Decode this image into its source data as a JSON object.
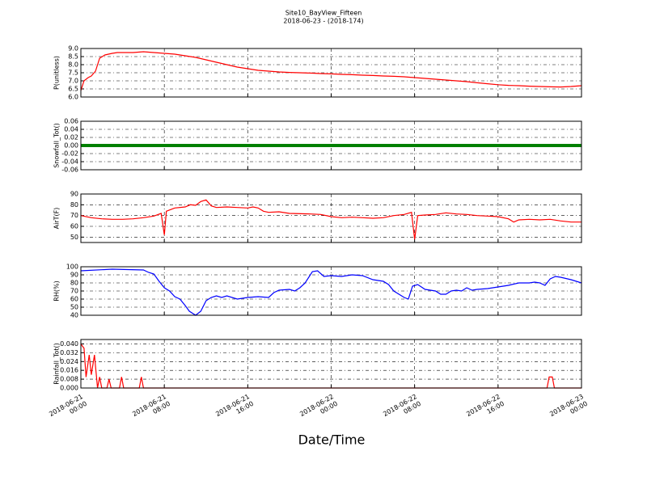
{
  "chart_data": [
    {
      "type": "line",
      "title": "Site10_BayView_Fifteen",
      "subtitle": "2018-06-23 - (2018-174)",
      "y_label": "P(unitless)",
      "color": "#ff0000",
      "x": [
        0,
        0.3,
        0.7,
        1,
        1.4,
        1.8,
        2.3,
        3,
        3.5,
        4,
        5,
        6,
        7,
        8,
        9,
        10,
        11,
        12,
        13,
        14,
        15,
        16,
        17,
        18,
        19,
        20,
        21,
        22,
        23,
        24,
        25,
        26,
        27,
        28,
        29,
        30,
        31,
        32,
        33,
        34,
        35,
        36,
        37,
        38,
        39,
        40,
        41,
        42,
        43,
        44,
        45,
        46,
        47,
        48
      ],
      "values": [
        6.4,
        7.0,
        7.2,
        7.3,
        7.6,
        8.4,
        8.6,
        8.7,
        8.75,
        8.75,
        8.75,
        8.8,
        8.75,
        8.7,
        8.65,
        8.55,
        8.45,
        8.3,
        8.15,
        8.0,
        7.85,
        7.75,
        7.65,
        7.6,
        7.55,
        7.52,
        7.5,
        7.48,
        7.45,
        7.43,
        7.4,
        7.38,
        7.35,
        7.33,
        7.3,
        7.28,
        7.25,
        7.2,
        7.15,
        7.1,
        7.05,
        7.0,
        6.95,
        6.88,
        6.82,
        6.76,
        6.72,
        6.7,
        6.67,
        6.65,
        6.63,
        6.62,
        6.65,
        6.7
      ],
      "ylim": [
        6,
        9
      ],
      "yticks": [
        {
          "value": 6,
          "label": "6.0"
        },
        6.5,
        {
          "value": 7,
          "label": "7.0"
        },
        7.5,
        {
          "value": 8,
          "label": "8.0"
        },
        8.5,
        {
          "value": 9,
          "label": "9.0"
        }
      ],
      "xlim": [
        0,
        48
      ],
      "xticks": [
        0,
        8,
        16,
        24,
        32,
        40,
        48
      ],
      "grid": true
    },
    {
      "type": "line",
      "y_label": "Snowfall_Tot()",
      "color": "#008000",
      "x": [
        0,
        4,
        8,
        12,
        16,
        20,
        24,
        28,
        32,
        36,
        40,
        44,
        48
      ],
      "values": [
        0,
        0,
        0,
        0,
        0,
        0,
        0,
        0,
        0,
        0,
        0,
        0,
        0
      ],
      "ylim": [
        -0.06,
        0.06
      ],
      "yticks": [
        -0.06,
        -0.04,
        -0.02,
        {
          "value": 0,
          "label": "0.00"
        },
        0.02,
        0.04,
        0.06
      ],
      "xlim": [
        0,
        48
      ],
      "xticks": [
        0,
        8,
        16,
        24,
        32,
        40,
        48
      ],
      "grid": true
    },
    {
      "type": "line",
      "y_label": "AirT(F)",
      "color": "#ff0000",
      "x": [
        0,
        1,
        2,
        3,
        4,
        5,
        6,
        7,
        7.7,
        8,
        8.2,
        9,
        10,
        10.5,
        11,
        11.5,
        12,
        12.5,
        13,
        14,
        15,
        16,
        16.5,
        17,
        17.5,
        18,
        19,
        20,
        22,
        23,
        24,
        25,
        26,
        27,
        28,
        29,
        30,
        31,
        31.7,
        32,
        32.3,
        33,
        34,
        35,
        36,
        37,
        38,
        39,
        40,
        41,
        41.5,
        42,
        43,
        44,
        45,
        46,
        47,
        48
      ],
      "values": [
        70,
        68,
        67,
        66.5,
        66.5,
        67,
        68,
        69.5,
        72,
        52,
        74,
        77,
        78,
        80,
        79.5,
        83,
        84.5,
        79,
        77.5,
        78,
        77.5,
        77,
        78,
        77,
        74,
        73,
        73.5,
        72,
        71.5,
        71,
        69,
        68,
        68.5,
        68,
        67.5,
        68,
        70,
        71,
        73,
        48,
        70,
        70.5,
        71,
        72.5,
        71.5,
        71,
        70,
        69.5,
        69,
        67,
        64,
        66,
        66.5,
        66,
        66.5,
        65,
        64,
        64
      ],
      "ylim": [
        45,
        90
      ],
      "yticks": [
        50,
        60,
        70,
        80,
        90
      ],
      "xlim": [
        0,
        48
      ],
      "xticks": [
        0,
        8,
        16,
        24,
        32,
        40,
        48
      ],
      "grid": true
    },
    {
      "type": "line",
      "y_label": "RH(%)",
      "color": "#0000ff",
      "x": [
        0,
        3,
        6,
        6.5,
        7,
        7.5,
        8,
        8.5,
        9,
        9.5,
        10,
        10.4,
        11,
        11.5,
        12,
        12.5,
        13,
        13.5,
        14,
        15,
        16,
        17,
        18,
        18.5,
        19,
        20,
        20.5,
        21,
        21.5,
        22,
        22.2,
        22.7,
        23.3,
        24,
        25,
        26,
        27,
        28,
        29,
        29.5,
        30,
        30.5,
        31,
        31.4,
        31.8,
        32.3,
        33,
        34,
        34.5,
        35,
        35.5,
        36,
        36.5,
        37,
        37.5,
        38,
        39,
        40,
        41,
        42,
        43,
        43.5,
        44,
        44.5,
        45,
        45.5,
        46,
        47,
        48
      ],
      "values": [
        95,
        97,
        96,
        93,
        91,
        82,
        74,
        70,
        63,
        60,
        52,
        45,
        40,
        45,
        58,
        62,
        64,
        62,
        64,
        60,
        62,
        63,
        62,
        68,
        71,
        72,
        70,
        74,
        80,
        90,
        94,
        95,
        88,
        89,
        88,
        90,
        89,
        84,
        82,
        78,
        70,
        66,
        62,
        60,
        76,
        78,
        72,
        70,
        66,
        66,
        70,
        71,
        70,
        74,
        71,
        72,
        73,
        75,
        77,
        80,
        80,
        81,
        80,
        77,
        85,
        88,
        87,
        84,
        80
      ],
      "ylim": [
        40,
        100
      ],
      "yticks": [
        40,
        50,
        60,
        70,
        80,
        90,
        100
      ],
      "xlim": [
        0,
        48
      ],
      "xticks": [
        0,
        8,
        16,
        24,
        32,
        40,
        48
      ],
      "grid": true
    },
    {
      "type": "line",
      "y_label": "Rainfall_Tot()",
      "x_label": "Date/Time",
      "color": "#ff0000",
      "x": [
        0,
        0.3,
        0.5,
        0.8,
        1,
        1.3,
        1.6,
        1.8,
        2,
        2.5,
        2.7,
        2.9,
        3.7,
        3.9,
        4.1,
        5.6,
        5.8,
        6,
        44.7,
        44.9,
        45.2,
        45.4,
        48
      ],
      "values": [
        0.04,
        0.036,
        0.01,
        0.03,
        0.012,
        0.03,
        0,
        0.01,
        0,
        0,
        0.008,
        0,
        0,
        0.01,
        0,
        0,
        0.01,
        0,
        0,
        0.01,
        0.01,
        0,
        0
      ],
      "ylim": [
        0,
        0.044
      ],
      "yticks": [
        {
          "value": 0,
          "label": "0.000"
        },
        0.008,
        0.016,
        0.024,
        0.032,
        {
          "value": 0.04,
          "label": "0.040"
        }
      ],
      "xlim": [
        0,
        48
      ],
      "xticks": [
        {
          "value": 0,
          "label": "2018-06-21\n00:00"
        },
        {
          "value": 8,
          "label": "2018-06-21\n08:00"
        },
        {
          "value": 16,
          "label": "2018-06-21\n16:00"
        },
        {
          "value": 24,
          "label": "2018-06-22\n00:00"
        },
        {
          "value": 32,
          "label": "2018-06-22\n08:00"
        },
        {
          "value": 40,
          "label": "2018-06-22\n16:00"
        },
        {
          "value": 48,
          "label": "2018-06-23\n00:00"
        }
      ],
      "grid": true
    }
  ]
}
